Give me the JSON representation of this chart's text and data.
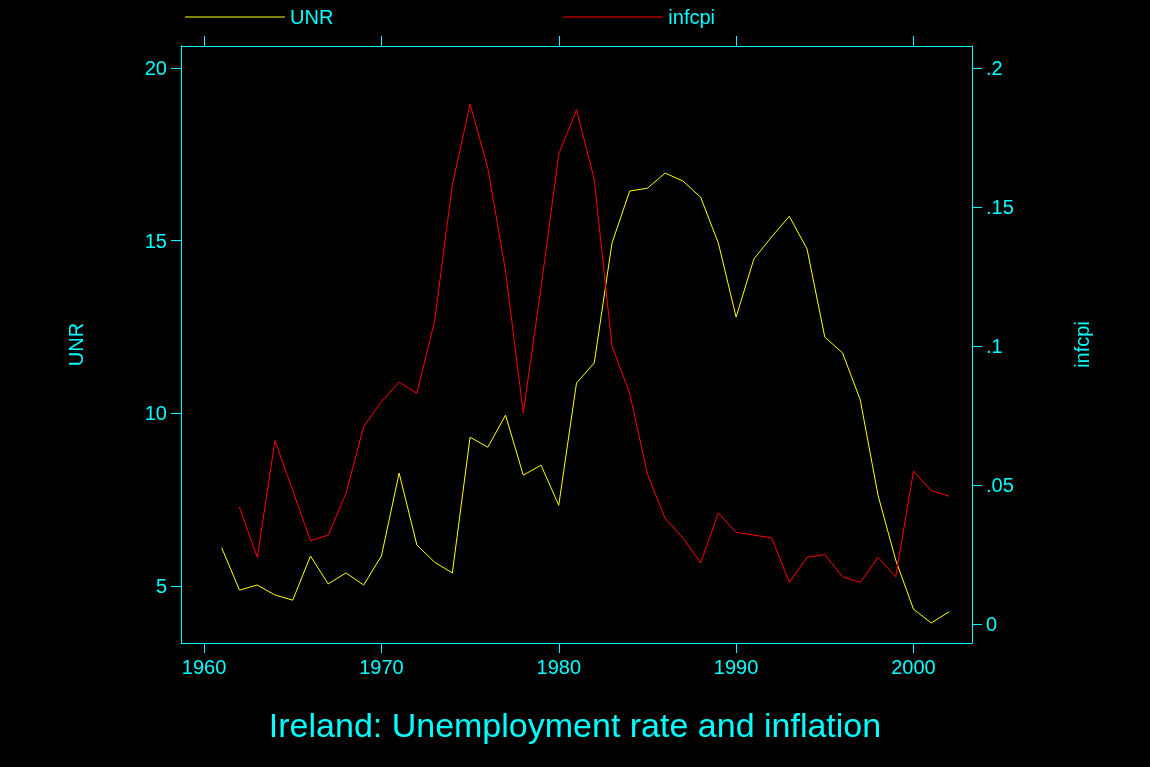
{
  "chart_data": {
    "type": "line",
    "title": "Ireland: Unemployment rate and inflation",
    "ylabel": "UNR",
    "y2label": "infcpi",
    "x": [
      1961,
      1962,
      1963,
      1964,
      1965,
      1966,
      1967,
      1968,
      1969,
      1970,
      1971,
      1972,
      1973,
      1974,
      1975,
      1976,
      1977,
      1978,
      1979,
      1980,
      1981,
      1982,
      1983,
      1984,
      1985,
      1986,
      1987,
      1988,
      1989,
      1990,
      1991,
      1992,
      1993,
      1994,
      1995,
      1996,
      1997,
      1998,
      1999,
      2000,
      2001,
      2002
    ],
    "series": [
      {
        "name": "UNR",
        "color": "#ffff00",
        "values": [
          6.1,
          4.88,
          5.03,
          4.74,
          4.59,
          5.87,
          5.06,
          5.38,
          5.03,
          5.87,
          8.27,
          6.19,
          5.69,
          5.38,
          9.31,
          9.02,
          9.95,
          8.21,
          8.5,
          7.34,
          10.88,
          11.46,
          14.93,
          16.44,
          16.52,
          16.96,
          16.73,
          16.26,
          14.93,
          12.79,
          14.47,
          15.11,
          15.71,
          14.76,
          12.21,
          11.75,
          10.39,
          7.63,
          5.75,
          4.33,
          3.93,
          4.25
        ]
      },
      {
        "name": "infcpi",
        "color": "#ff0000",
        "axis": "y2",
        "values": [
          null,
          0.042,
          0.024,
          0.066,
          0.048,
          0.03,
          0.032,
          0.047,
          0.071,
          0.08,
          0.087,
          0.083,
          0.109,
          0.158,
          0.187,
          0.164,
          0.127,
          0.076,
          0.121,
          0.169,
          0.185,
          0.16,
          0.1,
          0.083,
          0.054,
          0.038,
          0.031,
          0.022,
          0.04,
          0.033,
          0.032,
          0.031,
          0.015,
          0.024,
          0.025,
          0.017,
          0.015,
          0.024,
          0.017,
          0.055,
          0.048,
          0.046
        ]
      }
    ],
    "xlim": [
      1958.7,
      2003.3
    ],
    "xticks": [
      1960,
      1970,
      1980,
      1990,
      2000
    ],
    "ylim": [
      3.35,
      20.64
    ],
    "yticks": [
      5,
      10,
      15,
      20
    ],
    "y2lim": [
      -0.0068,
      0.2079
    ],
    "y2ticks": [
      {
        "value": 0,
        "label": "0"
      },
      {
        "value": 0.05,
        "label": ".05"
      },
      {
        "value": 0.1,
        "label": ".1"
      },
      {
        "value": 0.15,
        "label": ".15"
      },
      {
        "value": 0.2,
        "label": ".2"
      }
    ],
    "grid": false,
    "legend": "top",
    "marker": "none",
    "line_style": "solid"
  }
}
